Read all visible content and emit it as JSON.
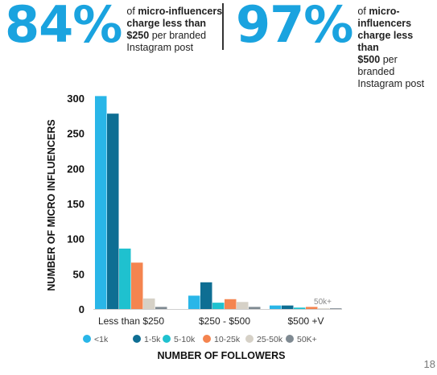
{
  "header": {
    "left": {
      "big": "84%",
      "pre": "of ",
      "bold": "micro-influencers charge less than $250",
      "post": " per branded Instagram post",
      "lines": [
        "of micro-influencers",
        "charge less than",
        "$250 per branded",
        "Instagram post"
      ]
    },
    "right": {
      "big": "97%",
      "pre": "of ",
      "bold": "micro-influencers charge less than $500",
      "post": " per branded Instagram post",
      "lines": [
        "of micro-influencers",
        "charge less than",
        "$500 per branded",
        "Instagram post"
      ]
    }
  },
  "page_number": "18",
  "chart_data": {
    "type": "bar",
    "xlabel": "NUMBER OF FOLLOWERS",
    "ylabel": "NUMBER OF MICRO INFLUENCERS",
    "ylim": [
      0,
      300
    ],
    "yticks": [
      0,
      50,
      100,
      150,
      200,
      250,
      300
    ],
    "categories": [
      "Less than $250",
      "$250 - $500",
      "$500 +V"
    ],
    "series": [
      {
        "name": "<1k",
        "color": "#29b6e8",
        "values": [
          303,
          19,
          5
        ]
      },
      {
        "name": "1-5k",
        "color": "#0e6e93",
        "values": [
          278,
          38,
          5
        ]
      },
      {
        "name": "5-10k",
        "color": "#1fc1cf",
        "values": [
          86,
          9,
          2
        ]
      },
      {
        "name": "10-25k",
        "color": "#f4844f",
        "values": [
          66,
          14,
          3
        ]
      },
      {
        "name": "25-50k",
        "color": "#d6d1c7",
        "values": [
          15,
          10,
          1
        ]
      },
      {
        "name": "50K+",
        "color": "#7f8a92",
        "values": [
          3,
          3,
          1
        ]
      }
    ],
    "annotations": [
      {
        "text": "50k+",
        "category": "$500 +V"
      }
    ],
    "legend_position": "bottom"
  }
}
